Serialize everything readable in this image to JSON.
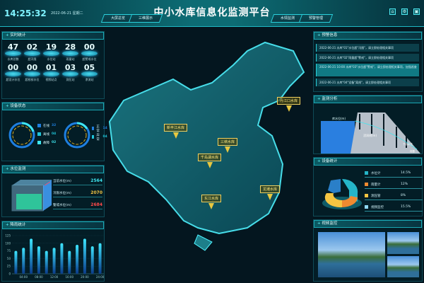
{
  "header": {
    "time": "14:25:32",
    "date": "2022-06-21 星期二",
    "title": "中小水库信息化监测平台",
    "nav_left": [
      "大屏总览",
      "三维展示"
    ],
    "nav_right": [
      "水情监测",
      "预警管理"
    ],
    "icons": [
      "home-icon",
      "settings-icon",
      "screen-icon"
    ]
  },
  "left": {
    "stats_title": "实时统计",
    "stats": [
      {
        "value": "47",
        "label": "水库总数"
      },
      {
        "value": "02",
        "label": "超汛限"
      },
      {
        "value": "19",
        "label": "水位站"
      },
      {
        "value": "28",
        "label": "雨量站"
      },
      {
        "value": "00",
        "label": "超警戒水位"
      },
      {
        "value": "00",
        "label": "超设计水位"
      },
      {
        "value": "00",
        "label": "超校核水位"
      },
      {
        "value": "01",
        "label": "视频站点"
      },
      {
        "value": "03",
        "label": "测压站"
      },
      {
        "value": "05",
        "label": "渗流站"
      }
    ],
    "device_title": "设备状态",
    "device_a": [
      {
        "label": "在线",
        "value": "32",
        "color": "#1e7fe0"
      },
      {
        "label": "离线",
        "value": "04",
        "color": "#1fc4d8"
      },
      {
        "label": "故障",
        "value": "02",
        "color": "#3ee6f0"
      }
    ],
    "device_b": [
      {
        "label": "正常",
        "value": "14",
        "color": "#1e7fe0"
      },
      {
        "label": "异常",
        "value": "04",
        "color": "#1fc4d8"
      }
    ],
    "water_title": "水位监测",
    "water": [
      {
        "label": "当前水位(m)",
        "value": "2564",
        "color": "#3ee6f0"
      },
      {
        "label": "汛限水位(m)",
        "value": "2070",
        "color": "#f5c542"
      },
      {
        "label": "警戒水位(m)",
        "value": "2684",
        "color": "#ff4a4a"
      }
    ],
    "rain_title": "降雨统计"
  },
  "chart_data": {
    "type": "bar",
    "title": "",
    "xlabel": "",
    "ylabel": "",
    "ylim": [
      0,
      125
    ],
    "yticks": [
      0,
      25,
      50,
      75,
      100,
      125
    ],
    "xtick_labels": [
      "04:00",
      "08:00",
      "12:00",
      "16:00",
      "20:00",
      "24:00"
    ],
    "values": [
      75,
      85,
      115,
      90,
      75,
      85,
      100,
      75,
      95,
      115,
      90,
      100
    ],
    "grid": true
  },
  "map": {
    "markers": [
      {
        "label": "新丰江水库"
      },
      {
        "label": "丹江口水库"
      },
      {
        "label": "三峡水库"
      },
      {
        "label": "千岛湖水库"
      },
      {
        "label": "东江水库"
      },
      {
        "label": "龙滩水库"
      }
    ]
  },
  "right": {
    "alert_title": "预警信息",
    "alerts": [
      "2022-06-21 水库\"01\"水位超\"汛限\"，请立即处理相关事项",
      "2022-06-21 水库\"02\"雨量超\"警戒\"，请立即处理相关事项",
      "2022-06-21 10:00 水库\"03\"水位超\"警戒\"，请立即处理相关事项，加强巡查",
      "2022-06-21 水库\"04\"设备\"离线\"，请立即处理相关事项"
    ],
    "analysis_title": "监测分析",
    "analysis_labels": {
      "upstream": "库水位(m)",
      "middle": "浸润线(m)",
      "downstream": "下游水位",
      "base": "坝基"
    },
    "device_title": "设备统计",
    "pie": [
      {
        "label": "水位计",
        "value": "14.5%",
        "color": "#25b5c8"
      },
      {
        "label": "雨量计",
        "value": "12%",
        "color": "#f08a30"
      },
      {
        "label": "测压管",
        "value": "8%",
        "color": "#f5c542"
      },
      {
        "label": "视频监控",
        "value": "15.5%",
        "color": "#8fd8f5"
      }
    ],
    "video_title": "视频监控"
  }
}
